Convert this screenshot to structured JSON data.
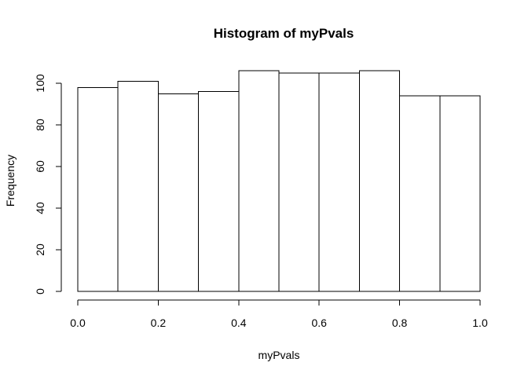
{
  "chart_data": {
    "type": "bar",
    "title": "Histogram of myPvals",
    "xlabel": "myPvals",
    "ylabel": "Frequency",
    "bins": [
      {
        "from": 0.0,
        "to": 0.1,
        "count": 98
      },
      {
        "from": 0.1,
        "to": 0.2,
        "count": 101
      },
      {
        "from": 0.2,
        "to": 0.3,
        "count": 95
      },
      {
        "from": 0.3,
        "to": 0.4,
        "count": 96
      },
      {
        "from": 0.4,
        "to": 0.5,
        "count": 106
      },
      {
        "from": 0.5,
        "to": 0.6,
        "count": 105
      },
      {
        "from": 0.6,
        "to": 0.7,
        "count": 105
      },
      {
        "from": 0.7,
        "to": 0.8,
        "count": 106
      },
      {
        "from": 0.8,
        "to": 0.9,
        "count": 94
      },
      {
        "from": 0.9,
        "to": 1.0,
        "count": 94
      }
    ],
    "xlim": [
      0,
      1
    ],
    "ylim": [
      0,
      110
    ],
    "x_ticks": [
      0.0,
      0.2,
      0.4,
      0.6,
      0.8,
      1.0
    ],
    "x_tick_labels": [
      "0.0",
      "0.2",
      "0.4",
      "0.6",
      "0.8",
      "1.0"
    ],
    "y_ticks": [
      0,
      20,
      40,
      60,
      80,
      100
    ],
    "y_tick_labels": [
      "0",
      "20",
      "40",
      "60",
      "80",
      "100"
    ],
    "grid": false,
    "bar_fill": "#ffffff",
    "bar_stroke": "#000000"
  }
}
